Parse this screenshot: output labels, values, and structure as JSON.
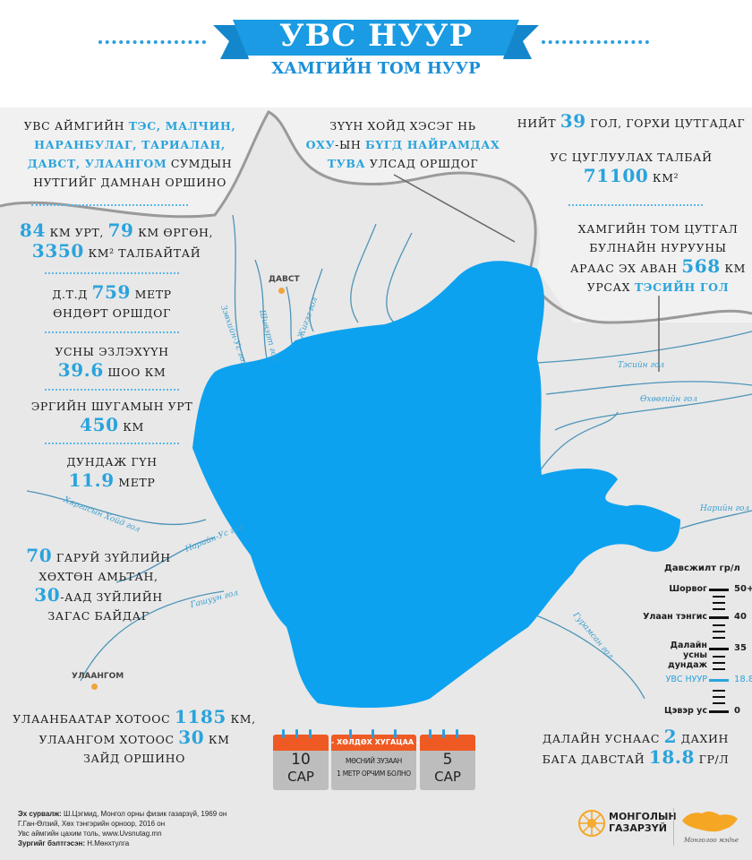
{
  "header": {
    "title": "УВС НУУР",
    "subtitle": "ХАМГИЙН ТОМ НУУР"
  },
  "facts_left": [
    {
      "segments": [
        {
          "t": "УВС АЙМГИЙН "
        },
        {
          "t": "ТЭС, МАЛЧИН,",
          "hl": 1
        },
        {
          "br": 1
        },
        {
          "t": "НАРАНБУЛАГ, ТАРИАЛАН,",
          "hl": 1
        },
        {
          "br": 1
        },
        {
          "t": "ДАВСТ, УЛААНГОМ",
          "hl": 1
        },
        {
          "t": " СУМДЫН"
        },
        {
          "br": 1
        },
        {
          "t": "НУТГИЙГ ДАМНАН ОРШИНО"
        }
      ]
    },
    {
      "segments": [
        {
          "t": "84",
          "big": 1
        },
        {
          "t": " КМ УРТ, "
        },
        {
          "t": "79",
          "big": 1
        },
        {
          "t": " КМ ӨРГӨН,"
        },
        {
          "br": 1
        },
        {
          "t": "3350",
          "big": 1
        },
        {
          "t": " КМ² ТАЛБАЙТАЙ"
        }
      ]
    },
    {
      "segments": [
        {
          "t": "Д.Т.Д "
        },
        {
          "t": "759",
          "big": 1
        },
        {
          "t": " МЕТР"
        },
        {
          "br": 1
        },
        {
          "t": "ӨНДӨРТ ОРШДОГ"
        }
      ]
    },
    {
      "segments": [
        {
          "t": "УСНЫ ЭЗЛЭХҮҮН"
        },
        {
          "br": 1
        },
        {
          "t": "39.6",
          "big": 1
        },
        {
          "t": " ШОО КМ"
        }
      ]
    },
    {
      "segments": [
        {
          "t": "ЭРГИЙН ШУГАМЫН УРТ"
        },
        {
          "br": 1
        },
        {
          "t": "450",
          "big": 1
        },
        {
          "t": " КМ"
        }
      ]
    },
    {
      "segments": [
        {
          "t": "ДУНДАЖ ГҮН"
        },
        {
          "br": 1
        },
        {
          "t": "11.9",
          "big": 1
        },
        {
          "t": " МЕТР"
        }
      ]
    },
    {
      "segments": [
        {
          "t": "70",
          "big": 1
        },
        {
          "t": " ГАРУЙ ЗҮЙЛИЙН"
        },
        {
          "br": 1
        },
        {
          "t": "ХӨХТӨН АМЬТАН,"
        },
        {
          "br": 1
        },
        {
          "t": "30",
          "big": 1
        },
        {
          "t": "-ААД ЗҮЙЛИЙН"
        },
        {
          "br": 1
        },
        {
          "t": "ЗАГАС БАЙДАГ"
        }
      ]
    },
    {
      "segments": [
        {
          "t": "УЛААНБААТАР ХОТООС "
        },
        {
          "t": "1185",
          "big": 1
        },
        {
          "t": " КМ,"
        },
        {
          "br": 1
        },
        {
          "t": "УЛААНГОМ ХОТООС "
        },
        {
          "t": "30",
          "big": 1
        },
        {
          "t": " КМ"
        },
        {
          "br": 1
        },
        {
          "t": "ЗАЙД ОРШИНО"
        }
      ]
    }
  ],
  "facts_center": [
    {
      "segments": [
        {
          "t": "ЗҮҮН ХОЙД ХЭСЭГ НЬ"
        },
        {
          "br": 1
        },
        {
          "t": "ОХУ",
          "hl": 1
        },
        {
          "t": "-ЫН "
        },
        {
          "t": "БҮГД НАЙРАМДАХ",
          "hl": 1
        },
        {
          "br": 1
        },
        {
          "t": "ТУВА",
          "hl": 1
        },
        {
          "t": " УЛСАД ОРШДОГ"
        }
      ]
    }
  ],
  "facts_right": [
    {
      "segments": [
        {
          "t": "НИЙТ "
        },
        {
          "t": "39",
          "big": 1
        },
        {
          "t": " ГОЛ, ГОРХИ ЦУТГАДАГ"
        }
      ]
    },
    {
      "segments": [
        {
          "t": "УС ЦУГЛУУЛАХ ТАЛБАЙ"
        },
        {
          "br": 1
        },
        {
          "t": "71100",
          "big": 1
        },
        {
          "t": " КМ²"
        }
      ]
    },
    {
      "segments": [
        {
          "t": "ХАМГИЙН ТОМ ЦУТГАЛ"
        },
        {
          "br": 1
        },
        {
          "t": "БУЛНАЙН НУРУУНЫ"
        },
        {
          "br": 1
        },
        {
          "t": "АРААС ЭХ АВАН "
        },
        {
          "t": "568",
          "big": 1
        },
        {
          "t": " КМ"
        },
        {
          "br": 1
        },
        {
          "t": "УРСАХ "
        },
        {
          "t": "ТЭСИЙН ГОЛ",
          "hl": 1
        }
      ]
    },
    {
      "segments": [
        {
          "t": "ДАЛАЙН УСНААС "
        },
        {
          "t": "2",
          "big": 1
        },
        {
          "t": " ДАХИН"
        },
        {
          "br": 1
        },
        {
          "t": "БАГА ДАВСТАЙ "
        },
        {
          "t": "18.8",
          "big": 1
        },
        {
          "t": " ГР/Л"
        }
      ]
    }
  ],
  "places": [
    {
      "name": "ДАВСТ"
    },
    {
      "name": "УЛААНГОМ"
    }
  ],
  "rivers": [
    "Зэвхийн-Ус гол",
    "Шивэрт гол",
    "Жигэг гол",
    "Тэсийн гол",
    "Өхөөгийн гол",
    "Нарийн гол",
    "Хяргасын Хойд гол",
    "Нарийн-Ус гол",
    "Гашуун гол",
    "Гурамсан гол"
  ],
  "salinity_scale": {
    "title": "Давсжилт гр/л",
    "rows": [
      {
        "label": "Шорвог",
        "value": "50+"
      },
      {
        "label": "Улаан тэнгис",
        "value": "40"
      },
      {
        "label": "Далайн усны дундаж",
        "value": "35"
      },
      {
        "label": "УВС НУУР",
        "value": "18.8",
        "highlight": true
      },
      {
        "label": "Цэвэр ус",
        "value": "0"
      }
    ],
    "highlight_color": "#2aa3dc"
  },
  "freeze_calendar": {
    "left": {
      "num": "10",
      "unit": "САР"
    },
    "middle": {
      "header": "- ХӨЛДӨХ ХУГАЦАА -",
      "line1": "МӨСНИЙ ЗУЗААН",
      "line2": "1 МЕТР ОРЧИМ БОЛНО"
    },
    "right": {
      "num": "5",
      "unit": "САР"
    }
  },
  "sources": {
    "label": "Эх сурвалж:",
    "lines": [
      "Ш.Цэгмид, Монгол орны физик газарзүй, 1969 он",
      "Г.Ган-Өлзий, Хөх тэнгэрийн орноор, 2016 он",
      "Увс аймгийн цахим толь, www.Uvsnutag.mn"
    ],
    "author_label": "Зургийг бэлтгэсэн:",
    "author": "Н.Мөнхтулга"
  },
  "logos": {
    "brand_line1": "МОНГОЛЫН",
    "brand_line2": "ГАЗАРЗҮЙ",
    "tagline": "Монголоо мэдье"
  },
  "colors": {
    "lake": "#0da2ef",
    "accent": "#2aa3dc",
    "ribbon": "#1a9be3",
    "calendar_header": "#ef5a24",
    "logo": "#f5a623"
  }
}
